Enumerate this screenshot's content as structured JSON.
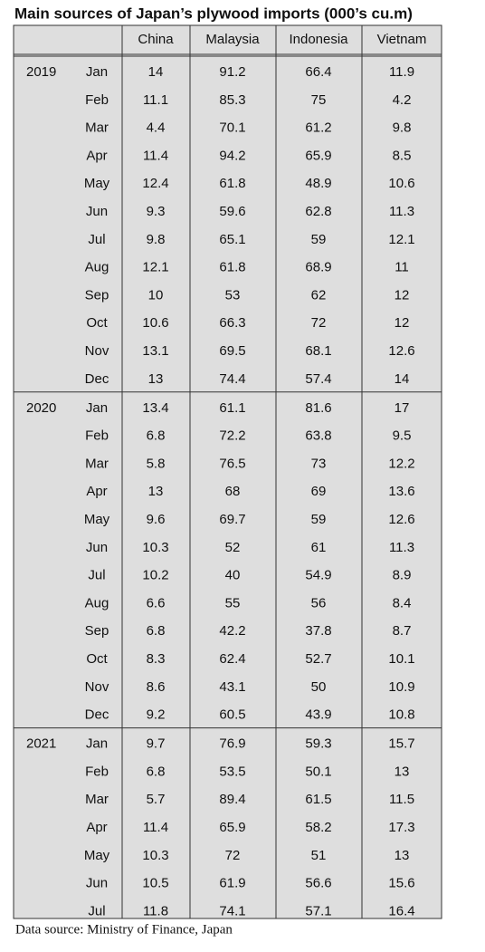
{
  "title": "Main sources of Japan’s plywood imports (000’s cu.m)",
  "table": {
    "columns": [
      "China",
      "Malaysia",
      "Indonesia",
      "Vietnam"
    ],
    "groups": [
      {
        "year": "2019",
        "rows": [
          {
            "month": "Jan",
            "values": [
              14,
              91.2,
              66.4,
              11.9
            ]
          },
          {
            "month": "Feb",
            "values": [
              11.1,
              85.3,
              75,
              4.2
            ]
          },
          {
            "month": "Mar",
            "values": [
              4.4,
              70.1,
              61.2,
              9.8
            ]
          },
          {
            "month": "Apr",
            "values": [
              11.4,
              94.2,
              65.9,
              8.5
            ]
          },
          {
            "month": "May",
            "values": [
              12.4,
              61.8,
              48.9,
              10.6
            ]
          },
          {
            "month": "Jun",
            "values": [
              9.3,
              59.6,
              62.8,
              11.3
            ]
          },
          {
            "month": "Jul",
            "values": [
              9.8,
              65.1,
              59,
              12.1
            ]
          },
          {
            "month": "Aug",
            "values": [
              12.1,
              61.8,
              68.9,
              11
            ]
          },
          {
            "month": "Sep",
            "values": [
              10,
              53,
              62,
              12
            ]
          },
          {
            "month": "Oct",
            "values": [
              10.6,
              66.3,
              72,
              12
            ]
          },
          {
            "month": "Nov",
            "values": [
              13.1,
              69.5,
              68.1,
              12.6
            ]
          },
          {
            "month": "Dec",
            "values": [
              13,
              74.4,
              57.4,
              14
            ]
          }
        ]
      },
      {
        "year": "2020",
        "rows": [
          {
            "month": "Jan",
            "values": [
              13.4,
              61.1,
              81.6,
              17
            ]
          },
          {
            "month": "Feb",
            "values": [
              6.8,
              72.2,
              63.8,
              9.5
            ]
          },
          {
            "month": "Mar",
            "values": [
              5.8,
              76.5,
              73,
              12.2
            ]
          },
          {
            "month": "Apr",
            "values": [
              13,
              68,
              69,
              13.6
            ]
          },
          {
            "month": "May",
            "values": [
              9.6,
              69.7,
              59,
              12.6
            ]
          },
          {
            "month": "Jun",
            "values": [
              10.3,
              52,
              61,
              11.3
            ]
          },
          {
            "month": "Jul",
            "values": [
              10.2,
              40,
              54.9,
              8.9
            ]
          },
          {
            "month": "Aug",
            "values": [
              6.6,
              55,
              56,
              8.4
            ]
          },
          {
            "month": "Sep",
            "values": [
              6.8,
              42.2,
              37.8,
              8.7
            ]
          },
          {
            "month": "Oct",
            "values": [
              8.3,
              62.4,
              52.7,
              10.1
            ]
          },
          {
            "month": "Nov",
            "values": [
              8.6,
              43.1,
              50,
              10.9
            ]
          },
          {
            "month": "Dec",
            "values": [
              9.2,
              60.5,
              43.9,
              10.8
            ]
          }
        ]
      },
      {
        "year": "2021",
        "rows": [
          {
            "month": "Jan",
            "values": [
              9.7,
              76.9,
              59.3,
              15.7
            ]
          },
          {
            "month": "Feb",
            "values": [
              6.8,
              53.5,
              50.1,
              13
            ]
          },
          {
            "month": "Mar",
            "values": [
              5.7,
              89.4,
              61.5,
              11.5
            ]
          },
          {
            "month": "Apr",
            "values": [
              11.4,
              65.9,
              58.2,
              17.3
            ]
          },
          {
            "month": "May",
            "values": [
              10.3,
              72,
              51,
              13
            ]
          },
          {
            "month": "Jun",
            "values": [
              10.5,
              61.9,
              56.6,
              15.6
            ]
          },
          {
            "month": "Jul",
            "values": [
              11.8,
              74.1,
              57.1,
              16.4
            ]
          }
        ]
      }
    ]
  },
  "source": "Data source: Ministry of Finance, Japan"
}
